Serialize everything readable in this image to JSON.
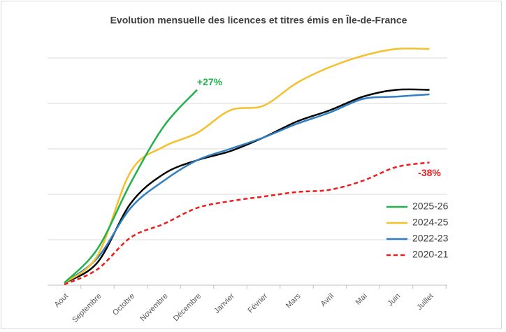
{
  "chart_data": {
    "type": "line",
    "title": "Evolution mensuelle des licences et titres émis en Île-de-France",
    "categories": [
      "Aout",
      "Septembre",
      "Octobre",
      "Novembre",
      "Décembre",
      "Janvier",
      "Février",
      "Mars",
      "Avril",
      "Mai",
      "Juin",
      "Juillet"
    ],
    "ylim": [
      0,
      110
    ],
    "yticks": [
      0,
      20,
      40,
      60,
      80,
      100
    ],
    "grid": true,
    "legend": "lower right",
    "series": [
      {
        "name": "2025-26",
        "color": "#22b14c",
        "values": [
          1,
          16,
          45,
          70,
          86,
          null,
          null,
          null,
          null,
          null,
          null,
          null
        ],
        "annotation": "+27%"
      },
      {
        "name": "2024-25",
        "color": "#f5c02c",
        "values": [
          1,
          13,
          50,
          61,
          67,
          77,
          79,
          89,
          96,
          101,
          104,
          104
        ]
      },
      {
        "name": "2022-23",
        "color": "#2f7fc1",
        "values": [
          1,
          12,
          34,
          46,
          55,
          60,
          65,
          71,
          76,
          82,
          83,
          84
        ]
      },
      {
        "name": "2020-21",
        "color": "#ee1c1c",
        "dashed": true,
        "values": [
          0.3,
          7,
          21,
          27,
          34,
          37,
          39,
          41,
          42,
          46,
          52,
          54
        ],
        "annotation": "-38%"
      },
      {
        "color": "#000000",
        "values": [
          1,
          10,
          36,
          49,
          55,
          59,
          65,
          72,
          77,
          83,
          86,
          86
        ]
      }
    ]
  }
}
